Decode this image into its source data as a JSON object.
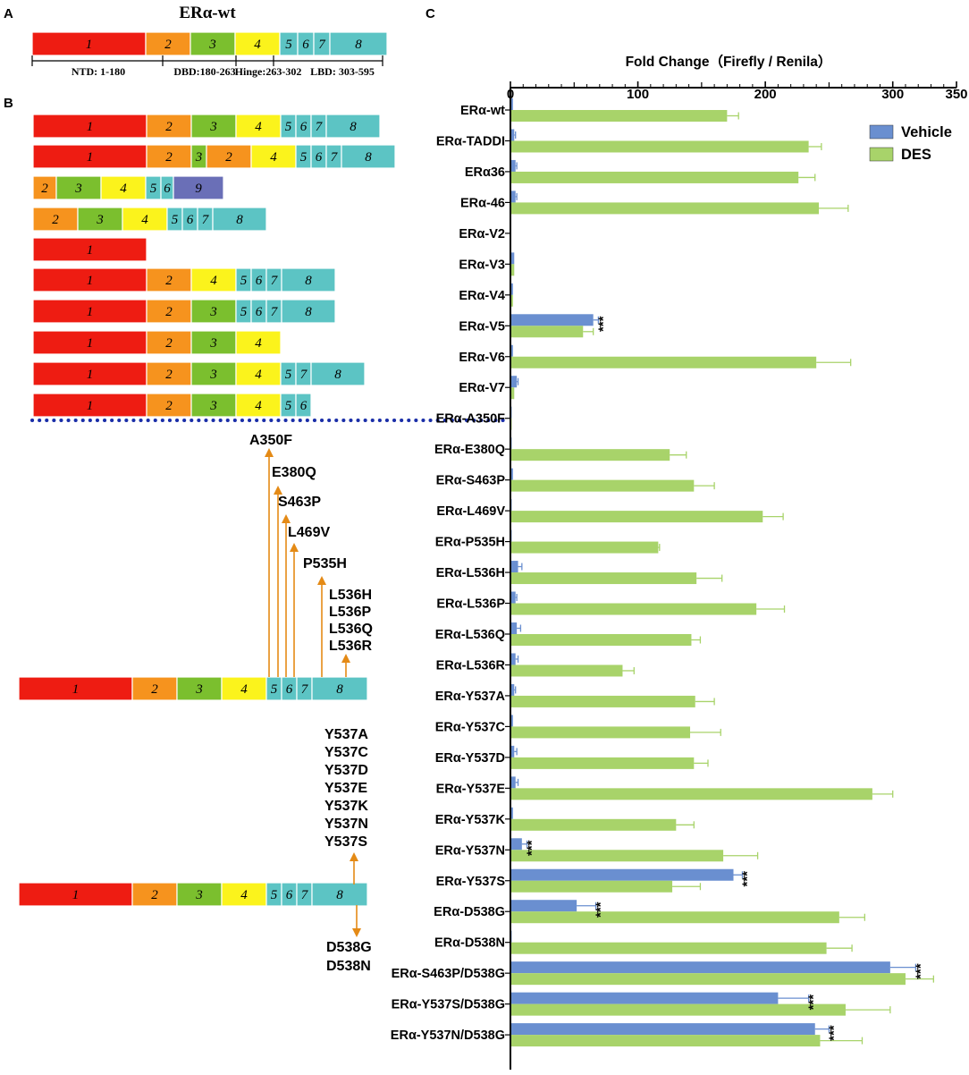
{
  "panel_labels": {
    "a": "A",
    "b": "B",
    "c": "C"
  },
  "panel_a": {
    "title": "ERα-wt",
    "domains": [
      "NTD: 1-180",
      "DBD:180-263",
      "Hinge:263-302",
      "LBD: 303-595"
    ]
  },
  "exon_colors": {
    "1": "#ee1c12",
    "2": "#f6931e",
    "3": "#7bbf2e",
    "4": "#fbf31c",
    "5": "#5cc4c4",
    "6": "#5cc4c4",
    "7": "#5cc4c4",
    "8": "#5cc4c4",
    "9": "#6a6fb7"
  },
  "panel_b": {
    "wt_exons": [
      "1",
      "2",
      "3",
      "4",
      "5",
      "6",
      "7",
      "8"
    ],
    "variants": [
      [
        "1",
        "2",
        "3",
        "4",
        "5",
        "6",
        "7",
        "8"
      ],
      [
        "1",
        "2",
        "3",
        "2",
        "4",
        "5",
        "6",
        "7",
        "8"
      ],
      [
        "2",
        "3",
        "4",
        "5",
        "6",
        "9"
      ],
      [
        "2",
        "3",
        "4",
        "5",
        "6",
        "7",
        "8"
      ],
      [
        "1"
      ],
      [
        "1",
        "2",
        "4",
        "5",
        "6",
        "7",
        "8"
      ],
      [
        "1",
        "2",
        "3",
        "5",
        "6",
        "7",
        "8"
      ],
      [
        "1",
        "2",
        "3",
        "4"
      ],
      [
        "1",
        "2",
        "3",
        "4",
        "5",
        "7",
        "8"
      ],
      [
        "1",
        "2",
        "3",
        "4",
        "5",
        "6"
      ]
    ],
    "mutations_top": [
      "A350F",
      "E380Q",
      "S463P",
      "L469V",
      "P535H",
      "L536H",
      "L536P",
      "L536Q",
      "L536R"
    ],
    "mutations_up": [
      "Y537A",
      "Y537C",
      "Y537D",
      "Y537E",
      "Y537K",
      "Y537N",
      "Y537S"
    ],
    "mutations_down": [
      "D538G",
      "D538N"
    ],
    "arrow_color": "#e48a16",
    "divider_color": "#1a2ea8"
  },
  "chart_data": {
    "type": "bar",
    "orientation": "horizontal",
    "title": "Fold Change（Firefly / Renila）",
    "xlim": [
      0,
      350
    ],
    "xticks": [
      "0",
      "100",
      "200",
      "300",
      "350"
    ],
    "categories": [
      "ERα-wt",
      "ERα-TADDI",
      "ERα36",
      "ERα-46",
      "ERα-V2",
      "ERα-V3",
      "ERα-V4",
      "ERα-V5",
      "ERα-V6",
      "ERα-V7",
      "ERα-A350F",
      "ERα-E380Q",
      "ERα-S463P",
      "ERα-L469V",
      "ERα-P535H",
      "ERα-L536H",
      "ERα-L536P",
      "ERα-L536Q",
      "ERα-L536R",
      "ERα-Y537A",
      "ERα-Y537C",
      "ERα-Y537D",
      "ERα-Y537E",
      "ERα-Y537K",
      "ERα-Y537N",
      "ERα-Y537S",
      "ERα-D538G",
      "ERα-D538N",
      "ERα-S463P/D538G",
      "ERα-Y537S/D538G",
      "ERα-Y537N/D538G"
    ],
    "series": [
      {
        "name": "Vehicle",
        "color": "#6a8fd0",
        "values": [
          2,
          3,
          4,
          4,
          0,
          3,
          2,
          65,
          2,
          5,
          1,
          1,
          2,
          1,
          1,
          6,
          4,
          5,
          4,
          3,
          2,
          3,
          4,
          2,
          9,
          175,
          52,
          1,
          298,
          210,
          239
        ],
        "errors": [
          0.5,
          1,
          1,
          1,
          0,
          0.5,
          0.5,
          4,
          0.5,
          1,
          0.3,
          0.3,
          0.5,
          0.3,
          0.3,
          3,
          1,
          3,
          2,
          1,
          0.5,
          2,
          2,
          0.5,
          4,
          7,
          15,
          0.5,
          20,
          24,
          11
        ]
      },
      {
        "name": "DES",
        "color": "#a8d36a",
        "values": [
          170,
          234,
          226,
          242,
          0,
          3,
          2,
          57,
          240,
          3,
          1,
          125,
          144,
          198,
          116,
          146,
          193,
          142,
          88,
          145,
          141,
          144,
          284,
          130,
          167,
          127,
          258,
          248,
          310,
          263,
          243
        ],
        "errors": [
          9,
          10,
          13,
          23,
          0,
          0.5,
          0.5,
          8,
          27,
          0.5,
          0.3,
          13,
          16,
          16,
          1,
          20,
          22,
          7,
          9,
          15,
          24,
          11,
          16,
          14,
          27,
          22,
          20,
          20,
          22,
          35,
          33
        ]
      }
    ],
    "significance": [
      "",
      "",
      "",
      "",
      "",
      "",
      "",
      "***",
      "",
      "",
      "",
      "",
      "",
      "",
      "",
      "",
      "",
      "",
      "",
      "",
      "",
      "",
      "",
      "",
      "***",
      "***",
      "***",
      "",
      "***",
      "***",
      "***"
    ],
    "legend": [
      "Vehicle",
      "DES"
    ],
    "legend_position": "top-right"
  }
}
